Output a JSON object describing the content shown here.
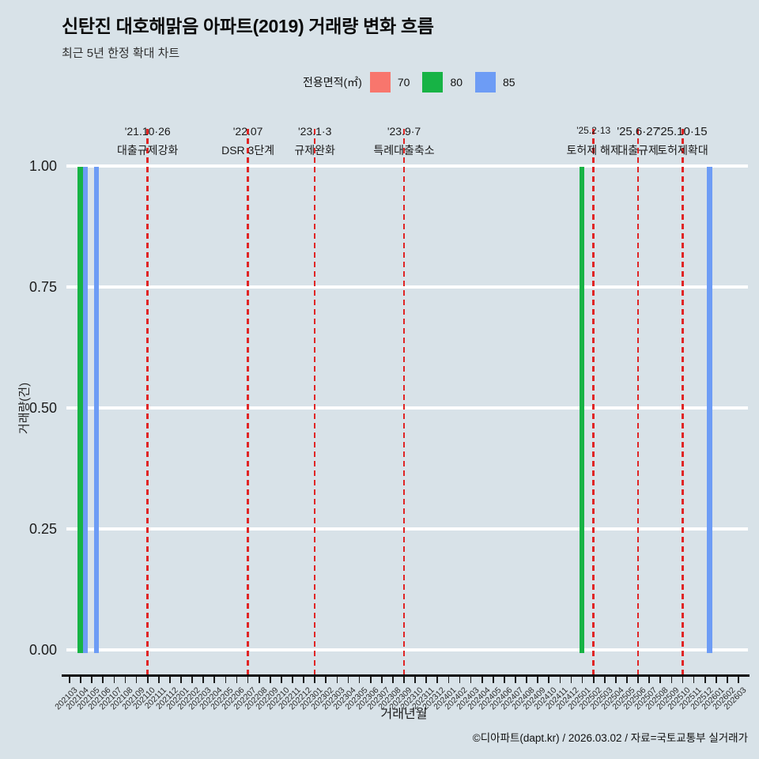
{
  "page": {
    "title": "신탄진 대호해맑음 아파트(2019) 거래량 변화 흐름",
    "subtitle": "최근 5년 한정 확대 차트",
    "footer": "©디아파트(dapt.kr) / 2026.03.02 / 자료=국토교통부 실거래가"
  },
  "legend": {
    "title": "전용면적(㎡)",
    "items": [
      {
        "label": "70",
        "color": "#f8766d"
      },
      {
        "label": "80",
        "color": "#17b345"
      },
      {
        "label": "85",
        "color": "#6d9cf5"
      }
    ]
  },
  "chart_data": {
    "type": "bar",
    "title": "신탄진 대호해맑음 아파트(2019) 거래량 변화 흐름",
    "subtitle": "최근 5년 한정 확대 차트",
    "xlabel": "거래년월",
    "ylabel": "거래량(건)",
    "ylim": [
      0,
      1
    ],
    "yticks": [
      "0.00",
      "0.25",
      "0.50",
      "0.75",
      "1.00"
    ],
    "grid": "horizontal-white-only",
    "legend_position": "top",
    "background": "#d8e2e8",
    "categories": [
      "202103",
      "202104",
      "202105",
      "202106",
      "202107",
      "202108",
      "202109",
      "202110",
      "202111",
      "202112",
      "202201",
      "202202",
      "202203",
      "202204",
      "202205",
      "202206",
      "202207",
      "202208",
      "202209",
      "202210",
      "202211",
      "202212",
      "202301",
      "202302",
      "202303",
      "202304",
      "202305",
      "202306",
      "202307",
      "202308",
      "202309",
      "202310",
      "202311",
      "202312",
      "202401",
      "202402",
      "202403",
      "202404",
      "202405",
      "202406",
      "202407",
      "202408",
      "202409",
      "202410",
      "202411",
      "202412",
      "202501",
      "202502",
      "202503",
      "202504",
      "202505",
      "202506",
      "202507",
      "202508",
      "202509",
      "202510",
      "202511",
      "202512",
      "202601",
      "202602",
      "202603"
    ],
    "series": [
      {
        "name": "70",
        "color": "#f8766d",
        "bars": []
      },
      {
        "name": "80",
        "color": "#17b345",
        "bars": [
          {
            "month": "202104",
            "value": 1
          },
          {
            "month": "202501",
            "value": 1
          }
        ]
      },
      {
        "name": "85",
        "color": "#6d9cf5",
        "bars": [
          {
            "month": "202104",
            "value": 1
          },
          {
            "month": "202105",
            "value": 1
          },
          {
            "month": "202512",
            "value": 1
          }
        ]
      }
    ],
    "annotations": [
      {
        "date": "'21.10·26",
        "label": "대출규제강화",
        "month": "202110"
      },
      {
        "date": "'22.07",
        "label": "DSR 3단계",
        "month": "202207"
      },
      {
        "date": "'23.1·3",
        "label": "규제완화",
        "month": "202301"
      },
      {
        "date": "'23.9·7",
        "label": "특례대출축소",
        "month": "202309"
      },
      {
        "date": "'25.2·13",
        "label": "토허제 해제",
        "month": "202502"
      },
      {
        "date": "'25.6·27",
        "label": "대출규제",
        "month": "202506"
      },
      {
        "date": "'25.10·15",
        "label": "토허제확대",
        "month": "202510"
      }
    ],
    "annotation_line_color": "#e02424"
  }
}
